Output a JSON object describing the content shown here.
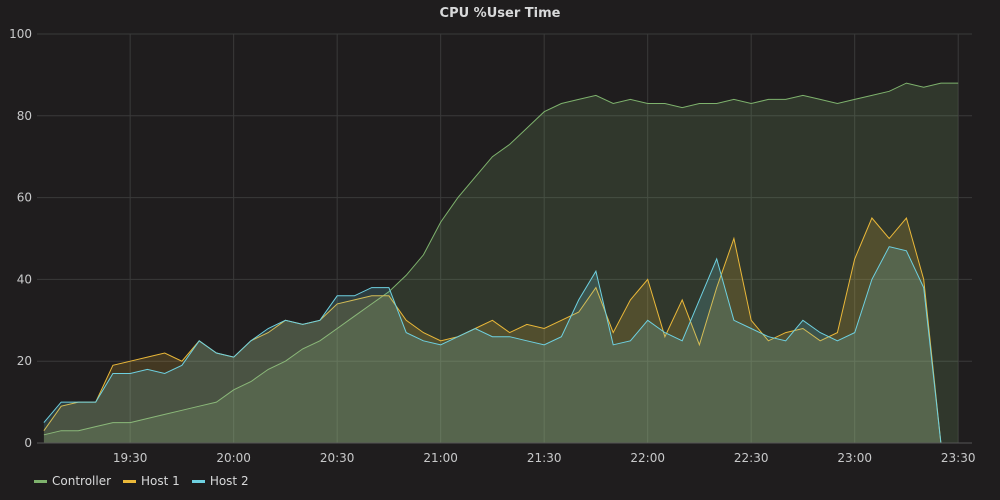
{
  "chart_data": {
    "type": "line",
    "title": "CPU %User Time",
    "xlabel": "",
    "ylabel": "",
    "ylim": [
      0,
      100
    ],
    "xlim": [
      "19:03",
      "23:34"
    ],
    "yticks": [
      0,
      20,
      40,
      60,
      80,
      100
    ],
    "xticks": [
      "19:30",
      "20:00",
      "20:30",
      "21:00",
      "21:30",
      "22:00",
      "22:30",
      "23:00",
      "23:30"
    ],
    "grid": true,
    "legend_position": "bottom-left",
    "x": [
      "19:05",
      "19:10",
      "19:15",
      "19:20",
      "19:25",
      "19:30",
      "19:35",
      "19:40",
      "19:45",
      "19:50",
      "19:55",
      "20:00",
      "20:05",
      "20:10",
      "20:15",
      "20:20",
      "20:25",
      "20:30",
      "20:35",
      "20:40",
      "20:45",
      "20:50",
      "20:55",
      "21:00",
      "21:05",
      "21:10",
      "21:15",
      "21:20",
      "21:25",
      "21:30",
      "21:35",
      "21:40",
      "21:45",
      "21:50",
      "21:55",
      "22:00",
      "22:05",
      "22:10",
      "22:15",
      "22:20",
      "22:25",
      "22:30",
      "22:35",
      "22:40",
      "22:45",
      "22:50",
      "22:55",
      "23:00",
      "23:05",
      "23:10",
      "23:15",
      "23:20",
      "23:25",
      "23:30",
      "23:35"
    ],
    "series": [
      {
        "name": "Controller",
        "color": "#7eb26d",
        "values": [
          2,
          3,
          3,
          4,
          5,
          5,
          6,
          7,
          8,
          9,
          10,
          13,
          15,
          18,
          20,
          23,
          25,
          28,
          31,
          34,
          37,
          41,
          46,
          54,
          60,
          65,
          70,
          73,
          77,
          81,
          83,
          84,
          85,
          83,
          84,
          83,
          83,
          82,
          83,
          83,
          84,
          83,
          84,
          84,
          85,
          84,
          83,
          84,
          85,
          86,
          88,
          87,
          88,
          88,
          86
        ]
      },
      {
        "name": "Host 1",
        "color": "#eab839",
        "values": [
          3,
          9,
          10,
          10,
          19,
          20,
          21,
          22,
          20,
          25,
          22,
          21,
          25,
          27,
          30,
          29,
          30,
          34,
          35,
          36,
          36,
          30,
          27,
          25,
          26,
          28,
          30,
          27,
          29,
          28,
          30,
          32,
          38,
          27,
          35,
          40,
          26,
          35,
          24,
          38,
          50,
          30,
          25,
          27,
          28,
          25,
          27,
          45,
          55,
          50,
          55,
          40,
          0,
          0,
          0
        ]
      },
      {
        "name": "Host 2",
        "color": "#6ed0e0",
        "values": [
          5,
          10,
          10,
          10,
          17,
          17,
          18,
          17,
          19,
          25,
          22,
          21,
          25,
          28,
          30,
          29,
          30,
          36,
          36,
          38,
          38,
          27,
          25,
          24,
          26,
          28,
          26,
          26,
          25,
          24,
          26,
          35,
          42,
          24,
          25,
          30,
          27,
          25,
          35,
          45,
          30,
          28,
          26,
          25,
          30,
          27,
          25,
          27,
          40,
          48,
          47,
          38,
          0,
          0,
          0
        ]
      }
    ]
  }
}
